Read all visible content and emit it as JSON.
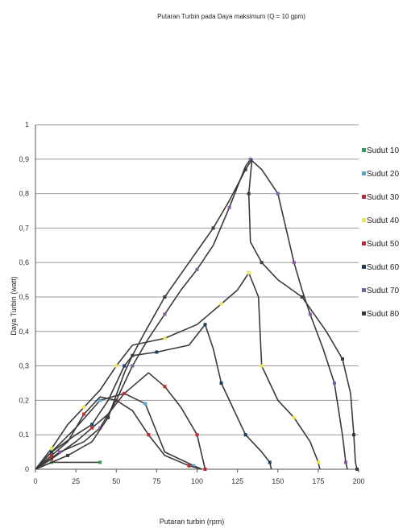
{
  "chart_data": {
    "type": "line",
    "title": "Putaran Turbin pada Daya maksimum (Q = 10 gpm)",
    "xlabel": "Putaran turbin (rpm)",
    "ylabel": "Daya Turbin (watt)",
    "xlim": [
      0,
      200
    ],
    "ylim": [
      0,
      1
    ],
    "xticks": [
      0,
      25,
      50,
      75,
      100,
      125,
      150,
      175,
      200
    ],
    "yticks": [
      0,
      0.1,
      0.2,
      0.3,
      0.4,
      0.5,
      0.6,
      0.7,
      0.8,
      0.9,
      1
    ],
    "ytick_labels": [
      "0",
      "0,1",
      "0,2",
      "0,3",
      "0,4",
      "0,5",
      "0,6",
      "0,7",
      "0,8",
      "0,9",
      "1"
    ],
    "grid": "horizontal",
    "legend_position": "right",
    "series": [
      {
        "name": "Sudut 10",
        "color": "#3a3a3a",
        "marker_color": "#2e9e5a",
        "points": [
          [
            0,
            0
          ],
          [
            10,
            0.02
          ],
          [
            25,
            0.02
          ],
          [
            40,
            0.02
          ]
        ]
      },
      {
        "name": "Sudut 20",
        "color": "#3a3a3a",
        "marker_color": "#4aa8d8",
        "points": [
          [
            0,
            0
          ],
          [
            10,
            0.05
          ],
          [
            25,
            0.12
          ],
          [
            40,
            0.2
          ],
          [
            55,
            0.22
          ],
          [
            68,
            0.19
          ],
          [
            80,
            0.05
          ],
          [
            98,
            0.01
          ],
          [
            103,
            0
          ]
        ]
      },
      {
        "name": "Sudut 30",
        "color": "#3a3a3a",
        "marker_color": "#c0282d",
        "points": [
          [
            0,
            0
          ],
          [
            10,
            0.04
          ],
          [
            20,
            0.08
          ],
          [
            30,
            0.16
          ],
          [
            40,
            0.21
          ],
          [
            50,
            0.2
          ],
          [
            60,
            0.17
          ],
          [
            70,
            0.1
          ],
          [
            80,
            0.04
          ],
          [
            95,
            0.01
          ],
          [
            103,
            0
          ]
        ]
      },
      {
        "name": "Sudut 40",
        "color": "#3a3a3a",
        "marker_color": "#e8e84a",
        "points": [
          [
            0,
            0
          ],
          [
            10,
            0.06
          ],
          [
            20,
            0.13
          ],
          [
            30,
            0.18
          ],
          [
            40,
            0.23
          ],
          [
            50,
            0.3
          ],
          [
            60,
            0.36
          ],
          [
            80,
            0.38
          ],
          [
            100,
            0.42
          ],
          [
            115,
            0.48
          ],
          [
            125,
            0.52
          ],
          [
            132,
            0.57
          ],
          [
            138,
            0.5
          ],
          [
            140,
            0.3
          ],
          [
            150,
            0.2
          ],
          [
            160,
            0.15
          ],
          [
            170,
            0.08
          ],
          [
            175,
            0.02
          ],
          [
            176,
            0
          ]
        ]
      },
      {
        "name": "Sudut 50",
        "color": "#3a3a3a",
        "marker_color": "#c0282d",
        "points": [
          [
            0,
            0
          ],
          [
            10,
            0.03
          ],
          [
            25,
            0.08
          ],
          [
            35,
            0.12
          ],
          [
            45,
            0.16
          ],
          [
            55,
            0.22
          ],
          [
            70,
            0.28
          ],
          [
            80,
            0.24
          ],
          [
            90,
            0.18
          ],
          [
            100,
            0.1
          ],
          [
            104,
            0.02
          ],
          [
            105,
            0
          ]
        ]
      },
      {
        "name": "Sudut 60",
        "color": "#3a3a3a",
        "marker_color": "#1d3d5c",
        "points": [
          [
            0,
            0
          ],
          [
            10,
            0.05
          ],
          [
            25,
            0.1
          ],
          [
            35,
            0.13
          ],
          [
            45,
            0.2
          ],
          [
            55,
            0.3
          ],
          [
            60,
            0.33
          ],
          [
            75,
            0.34
          ],
          [
            95,
            0.36
          ],
          [
            105,
            0.42
          ],
          [
            110,
            0.35
          ],
          [
            115,
            0.25
          ],
          [
            120,
            0.2
          ],
          [
            130,
            0.1
          ],
          [
            140,
            0.05
          ],
          [
            145,
            0.02
          ],
          [
            146,
            0
          ]
        ]
      },
      {
        "name": "Sudut 70",
        "color": "#3a3a3a",
        "marker_color": "#7e5aa8",
        "points": [
          [
            0,
            0
          ],
          [
            15,
            0.05
          ],
          [
            30,
            0.08
          ],
          [
            40,
            0.12
          ],
          [
            50,
            0.2
          ],
          [
            60,
            0.3
          ],
          [
            70,
            0.38
          ],
          [
            80,
            0.45
          ],
          [
            90,
            0.52
          ],
          [
            100,
            0.58
          ],
          [
            110,
            0.65
          ],
          [
            120,
            0.76
          ],
          [
            130,
            0.88
          ],
          [
            133,
            0.9
          ],
          [
            140,
            0.87
          ],
          [
            150,
            0.8
          ],
          [
            155,
            0.7
          ],
          [
            160,
            0.6
          ],
          [
            165,
            0.52
          ],
          [
            170,
            0.45
          ],
          [
            178,
            0.35
          ],
          [
            185,
            0.25
          ],
          [
            190,
            0.1
          ],
          [
            192,
            0.02
          ],
          [
            193,
            0
          ]
        ]
      },
      {
        "name": "Sudut 80",
        "color": "#3a3a3a",
        "marker_color": "#3a3a3a",
        "points": [
          [
            0,
            0
          ],
          [
            20,
            0.04
          ],
          [
            35,
            0.08
          ],
          [
            45,
            0.15
          ],
          [
            55,
            0.28
          ],
          [
            60,
            0.33
          ],
          [
            68,
            0.4
          ],
          [
            80,
            0.5
          ],
          [
            95,
            0.6
          ],
          [
            110,
            0.7
          ],
          [
            120,
            0.78
          ],
          [
            130,
            0.87
          ],
          [
            134,
            0.9
          ],
          [
            132,
            0.8
          ],
          [
            133,
            0.66
          ],
          [
            140,
            0.6
          ],
          [
            150,
            0.55
          ],
          [
            165,
            0.5
          ],
          [
            180,
            0.4
          ],
          [
            190,
            0.32
          ],
          [
            195,
            0.22
          ],
          [
            197,
            0.1
          ],
          [
            198,
            0.02
          ],
          [
            199,
            0
          ]
        ]
      }
    ]
  }
}
